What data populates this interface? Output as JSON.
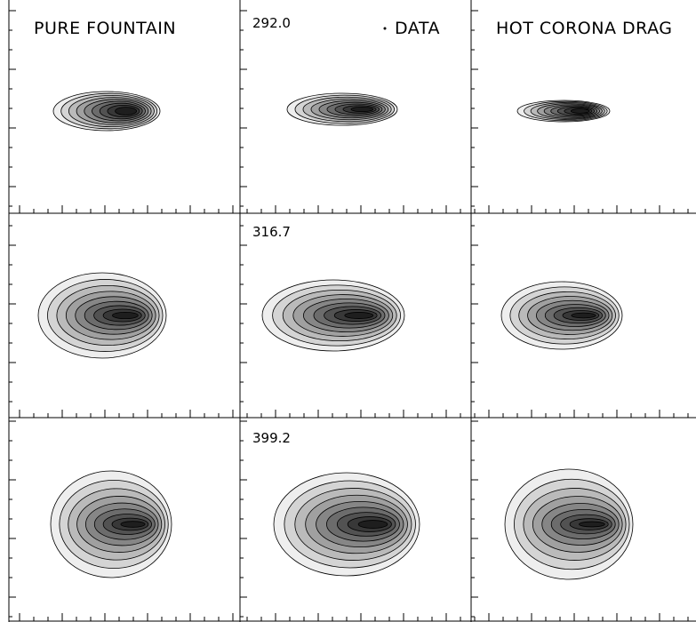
{
  "columns": {
    "0": {
      "title": "PURE FOUNTAIN"
    },
    "1": {
      "title": "DATA"
    },
    "2": {
      "title": "HOT CORONA DRAG"
    }
  },
  "rows": {
    "0": {
      "velocity": "292.0"
    },
    "1": {
      "velocity": "316.7"
    },
    "2": {
      "velocity": "399.2"
    }
  }
}
